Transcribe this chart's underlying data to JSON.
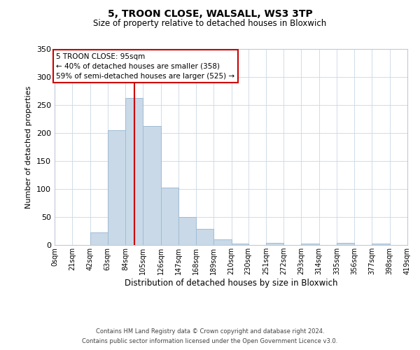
{
  "title": "5, TROON CLOSE, WALSALL, WS3 3TP",
  "subtitle": "Size of property relative to detached houses in Bloxwich",
  "xlabel": "Distribution of detached houses by size in Bloxwich",
  "ylabel": "Number of detached properties",
  "bin_edges": [
    0,
    21,
    42,
    63,
    84,
    105,
    126,
    147,
    168,
    189,
    210,
    230,
    251,
    272,
    293,
    314,
    335,
    356,
    377,
    398,
    419
  ],
  "bin_counts": [
    0,
    0,
    22,
    205,
    263,
    212,
    103,
    50,
    29,
    10,
    3,
    0,
    4,
    0,
    3,
    0,
    4,
    0,
    3,
    0
  ],
  "bar_color": "#c9d9e8",
  "bar_edgecolor": "#a0bcd4",
  "vline_x": 95,
  "vline_color": "#cc0000",
  "ylim": [
    0,
    350
  ],
  "yticks": [
    0,
    50,
    100,
    150,
    200,
    250,
    300,
    350
  ],
  "xtick_labels": [
    "0sqm",
    "21sqm",
    "42sqm",
    "63sqm",
    "84sqm",
    "105sqm",
    "126sqm",
    "147sqm",
    "168sqm",
    "189sqm",
    "210sqm",
    "230sqm",
    "251sqm",
    "272sqm",
    "293sqm",
    "314sqm",
    "335sqm",
    "356sqm",
    "377sqm",
    "398sqm",
    "419sqm"
  ],
  "annotation_title": "5 TROON CLOSE: 95sqm",
  "annotation_line1": "← 40% of detached houses are smaller (358)",
  "annotation_line2": "59% of semi-detached houses are larger (525) →",
  "annotation_box_color": "#ffffff",
  "annotation_box_edgecolor": "#cc0000",
  "footer1": "Contains HM Land Registry data © Crown copyright and database right 2024.",
  "footer2": "Contains public sector information licensed under the Open Government Licence v3.0.",
  "background_color": "#ffffff",
  "grid_color": "#d0dce8"
}
